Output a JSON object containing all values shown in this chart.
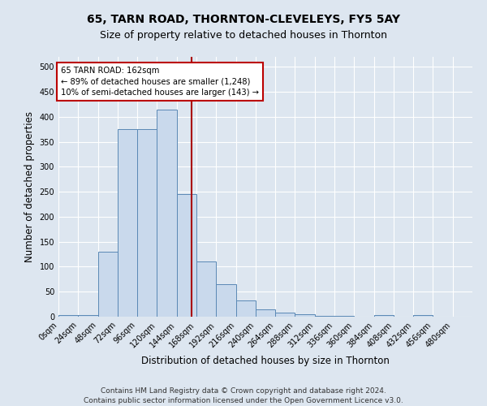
{
  "title1": "65, TARN ROAD, THORNTON-CLEVELEYS, FY5 5AY",
  "title2": "Size of property relative to detached houses in Thornton",
  "xlabel": "Distribution of detached houses by size in Thornton",
  "ylabel": "Number of detached properties",
  "bin_edges": [
    0,
    24,
    48,
    72,
    96,
    120,
    144,
    168,
    192,
    216,
    240,
    264,
    288,
    312,
    336,
    360,
    384,
    408,
    432,
    456,
    480,
    504
  ],
  "bar_heights": [
    3,
    3,
    130,
    375,
    375,
    415,
    245,
    110,
    65,
    33,
    15,
    8,
    5,
    2,
    2,
    0,
    3,
    0,
    3,
    0,
    0
  ],
  "bar_color": "#c9d9ec",
  "bar_edge_color": "#5a88b5",
  "property_size": 162,
  "vline_color": "#aa0000",
  "annotation_line1": "65 TARN ROAD: 162sqm",
  "annotation_line2": "← 89% of detached houses are smaller (1,248)",
  "annotation_line3": "10% of semi-detached houses are larger (143) →",
  "annotation_box_color": "#ffffff",
  "annotation_box_edge_color": "#bb0000",
  "footnote1": "Contains HM Land Registry data © Crown copyright and database right 2024.",
  "footnote2": "Contains public sector information licensed under the Open Government Licence v3.0.",
  "ylim": [
    0,
    520
  ],
  "xlim": [
    0,
    504
  ],
  "fig_bg_color": "#dde6f0",
  "ax_bg_color": "#dde6f0",
  "grid_color": "#ffffff",
  "title1_fontsize": 10,
  "title2_fontsize": 9,
  "tick_fontsize": 7,
  "label_fontsize": 8.5,
  "footnote_fontsize": 6.5
}
